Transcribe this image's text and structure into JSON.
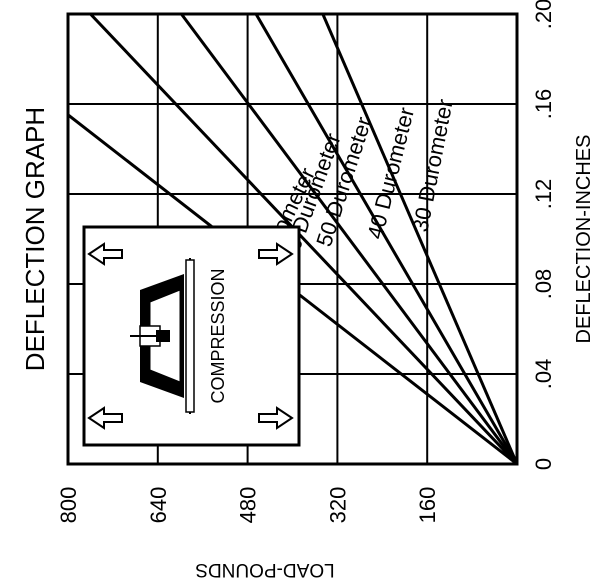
{
  "chart_data": {
    "type": "line",
    "title": "DEFLECTION GRAPH",
    "xlabel": "DEFLECTION-INCHES",
    "ylabel": "LOAD-POUNDS",
    "x_ticks": [
      "0",
      ".04",
      ".08",
      ".12",
      ".16",
      ".20"
    ],
    "y_ticks": [
      "160",
      "320",
      "480",
      "640",
      "800"
    ],
    "xlim": [
      0,
      0.2
    ],
    "ylim": [
      0,
      800
    ],
    "grid": true,
    "series": [
      {
        "name": "70 Durometer",
        "x": [
          0,
          0.2
        ],
        "y": [
          0,
          1031
        ]
      },
      {
        "name": "60 Durometer",
        "x": [
          0,
          0.2
        ],
        "y": [
          0,
          760
        ]
      },
      {
        "name": "50 Durometer",
        "x": [
          0,
          0.2
        ],
        "y": [
          0,
          598
        ]
      },
      {
        "name": "40 Durometer",
        "x": [
          0,
          0.2
        ],
        "y": [
          0,
          465
        ]
      },
      {
        "name": "30 Durometer",
        "x": [
          0,
          0.2
        ],
        "y": [
          0,
          346
        ]
      }
    ],
    "inset": {
      "label": "COMPRESSION"
    }
  }
}
